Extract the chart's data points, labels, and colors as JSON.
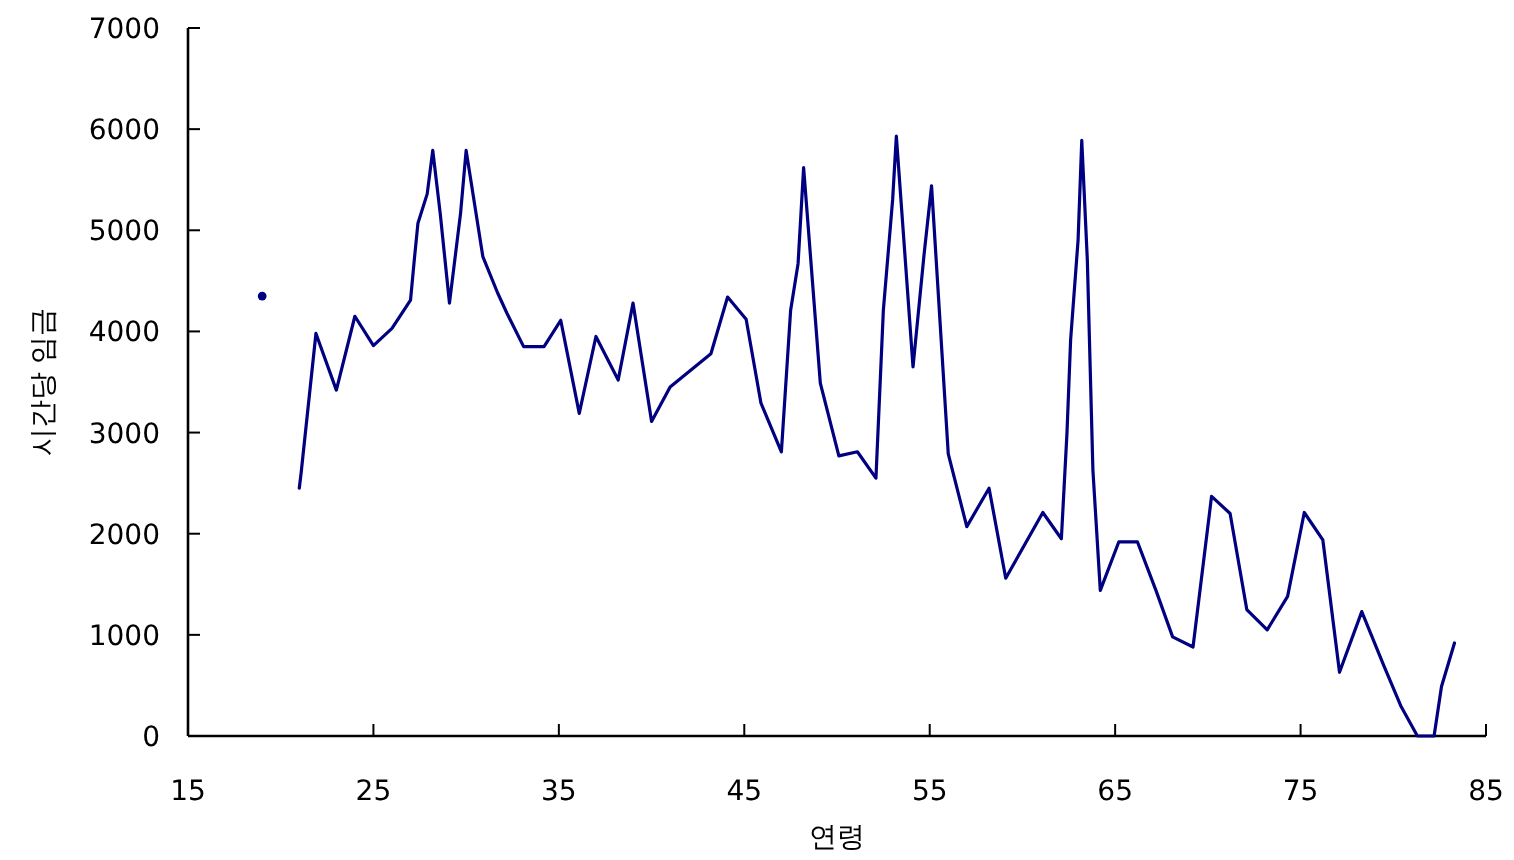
{
  "chart_data": {
    "type": "line",
    "xlabel": "연령",
    "ylabel": "시간당 임금",
    "xlim": [
      15,
      85
    ],
    "xticks": [
      15,
      25,
      35,
      45,
      55,
      65,
      75,
      85
    ],
    "ylim": [
      0,
      7000
    ],
    "yticks": [
      0,
      1000,
      2000,
      3000,
      4000,
      5000,
      6000,
      7000
    ],
    "grid": false,
    "line_style": "solid",
    "series": [
      {
        "type": "scatter",
        "color": "#000080",
        "x": [
          19
        ],
        "values": [
          4350
        ]
      },
      {
        "color": "#000080",
        "x": [
          21,
          21.1,
          21.9,
          23.0,
          24.0,
          25.0,
          26.0,
          27.0,
          27.2,
          27.4,
          27.9,
          28.2,
          28.6,
          29.1,
          29.7,
          30.0,
          30.9,
          31.7,
          32.2,
          33.1,
          34.2,
          35.1,
          36.1,
          37.0,
          38.2,
          39.0,
          40.0,
          41.0,
          43.2,
          44.1,
          45.1,
          45.9,
          47.0,
          47.5,
          47.9,
          48.2,
          49.1,
          50.1,
          51.1,
          52.1,
          52.5,
          53.0,
          53.2,
          54.1,
          54.7,
          55.1,
          56.0,
          57.0,
          58.2,
          59.1,
          61.1,
          62.1,
          62.4,
          62.6,
          63.0,
          63.2,
          63.5,
          63.8,
          64.2,
          65.2,
          66.2,
          67.2,
          68.1,
          69.2,
          70.2,
          71.2,
          72.1,
          73.2,
          74.3,
          75.2,
          76.2,
          77.1,
          78.3,
          79.5,
          80.4,
          81.3,
          82.2,
          82.6,
          83.3
        ],
        "values": [
          2450,
          2600,
          3980,
          3420,
          4150,
          3860,
          4030,
          4310,
          4700,
          5070,
          5360,
          5790,
          5170,
          4280,
          5170,
          5790,
          4740,
          4380,
          4180,
          3850,
          3850,
          4110,
          3190,
          3950,
          3520,
          4280,
          3110,
          3450,
          3780,
          4340,
          4120,
          3290,
          2810,
          4210,
          4670,
          5620,
          3490,
          2770,
          2810,
          2550,
          4210,
          5300,
          5930,
          3650,
          4770,
          5440,
          2790,
          2070,
          2450,
          1560,
          2210,
          1950,
          2990,
          3920,
          4900,
          5890,
          4710,
          2630,
          1440,
          1920,
          1920,
          1440,
          980,
          880,
          2370,
          2200,
          1250,
          1050,
          1380,
          2210,
          1940,
          630,
          1230,
          690,
          300,
          0,
          0,
          490,
          920
        ]
      }
    ]
  }
}
